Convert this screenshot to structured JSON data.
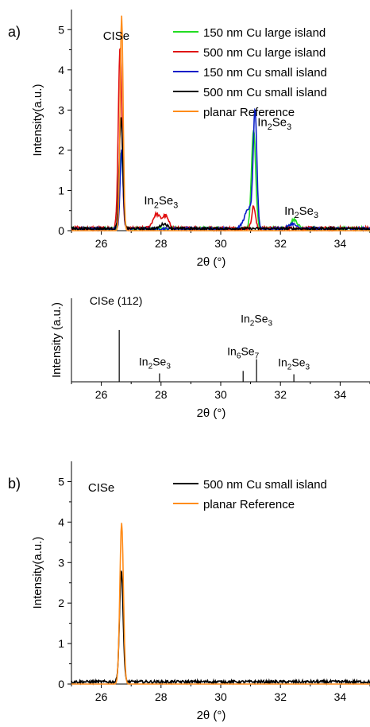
{
  "chart_data": [
    {
      "panel_label": "a)",
      "type": "line",
      "xlabel": "2θ (°)",
      "ylabel": "Intensity(a.u.)",
      "xlim": [
        25,
        35
      ],
      "ylim": [
        0,
        5.5
      ],
      "x_ticks": [
        26,
        28,
        30,
        32,
        34
      ],
      "y_ticks": [
        0,
        1,
        2,
        3,
        4,
        5
      ],
      "legend_position": "top-right",
      "annotations": [
        {
          "text": "CISe",
          "x": 26.5,
          "y": 4.75
        },
        {
          "text": "In",
          "sub": "2",
          "text2": "Se",
          "sub2": "3",
          "x": 28.0,
          "y": 0.65
        },
        {
          "text": "In",
          "sub": "2",
          "text2": "Se",
          "sub2": "3",
          "x": 31.8,
          "y": 2.6
        },
        {
          "text": "In",
          "sub": "2",
          "text2": "Se",
          "sub2": "3",
          "x": 32.7,
          "y": 0.4
        }
      ],
      "series": [
        {
          "name": "150 nm Cu large island",
          "color": "#22dd22",
          "noise": 0.07,
          "peaks": [
            [
              26.67,
              1.9,
              0.06
            ],
            [
              31.1,
              2.45,
              0.07
            ],
            [
              32.45,
              0.22,
              0.12
            ]
          ]
        },
        {
          "name": "500 nm Cu large island",
          "color": "#e01010",
          "noise": 0.08,
          "peaks": [
            [
              26.63,
              4.55,
              0.06
            ],
            [
              27.85,
              0.35,
              0.12
            ],
            [
              28.15,
              0.3,
              0.1
            ],
            [
              31.1,
              0.55,
              0.06
            ]
          ]
        },
        {
          "name": "150 nm Cu small island",
          "color": "#0a1ec8",
          "noise": 0.06,
          "peaks": [
            [
              26.68,
              1.95,
              0.05
            ],
            [
              31.15,
              2.75,
              0.06
            ],
            [
              30.95,
              0.5,
              0.15
            ],
            [
              32.4,
              0.12,
              0.12
            ]
          ]
        },
        {
          "name": "500 nm Cu small island",
          "color": "#000000",
          "noise": 0.06,
          "peaks": [
            [
              26.66,
              2.75,
              0.06
            ],
            [
              28.1,
              0.12,
              0.12
            ]
          ]
        },
        {
          "name": "planar Reference",
          "color": "#ff8c1a",
          "noise": 0.0,
          "peaks": [
            [
              26.68,
              5.35,
              0.05
            ]
          ]
        }
      ]
    },
    {
      "type": "bar",
      "xlabel": "2θ (°)",
      "ylabel": "Intensity (a.u.)",
      "xlim": [
        25,
        35
      ],
      "ylim": [
        0,
        1
      ],
      "x_ticks": [
        26,
        28,
        30,
        32,
        34
      ],
      "reference_lines": [
        {
          "x": 26.6,
          "height": 0.62,
          "label": "CISe (112)"
        },
        {
          "x": 27.95,
          "height": 0.1,
          "label": "In",
          "sub": "2",
          "label2": "Se",
          "sub2": "3"
        },
        {
          "x": 30.75,
          "height": 0.13,
          "label": "In",
          "sub": "6",
          "label2": "Se",
          "sub2": "7"
        },
        {
          "x": 31.2,
          "height": 0.27,
          "label": "In",
          "sub": "2",
          "label2": "Se",
          "sub2": "3"
        },
        {
          "x": 32.45,
          "height": 0.09,
          "label": "In",
          "sub": "2",
          "label2": "Se",
          "sub2": "3"
        }
      ]
    },
    {
      "panel_label": "b)",
      "type": "line",
      "xlabel": "2θ (°)",
      "ylabel": "Intensity(a.u.)",
      "xlim": [
        25,
        35
      ],
      "ylim": [
        0,
        5.5
      ],
      "x_ticks": [
        26,
        28,
        30,
        32,
        34
      ],
      "y_ticks": [
        0,
        1,
        2,
        3,
        4,
        5
      ],
      "legend_position": "top-right",
      "annotations": [
        {
          "text": "CISe",
          "x": 26.0,
          "y": 4.75
        }
      ],
      "series": [
        {
          "name": "500 nm Cu small island",
          "color": "#000000",
          "noise": 0.07,
          "peaks": [
            [
              26.67,
              2.75,
              0.06
            ]
          ]
        },
        {
          "name": "planar Reference",
          "color": "#ff8c1a",
          "noise": 0.0,
          "peaks": [
            [
              26.68,
              3.98,
              0.06
            ]
          ]
        }
      ]
    }
  ]
}
